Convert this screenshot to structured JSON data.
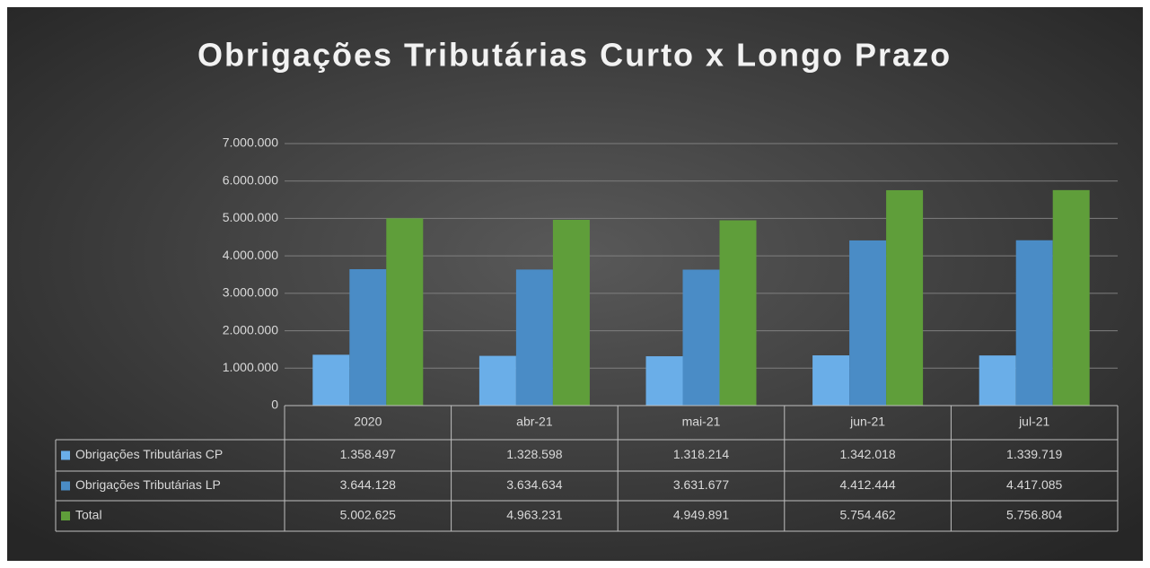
{
  "chart_data": {
    "type": "bar",
    "title": "Obrigações Tributárias Curto x Longo Prazo",
    "categories": [
      "2020",
      "abr-21",
      "mai-21",
      "jun-21",
      "jul-21"
    ],
    "series": [
      {
        "name": "Obrigações Tributárias CP",
        "color": "#6aaee8",
        "values": [
          1358497,
          1328598,
          1318214,
          1342018,
          1339719
        ],
        "value_labels": [
          "1.358.497",
          "1.328.598",
          "1.318.214",
          "1.342.018",
          "1.339.719"
        ]
      },
      {
        "name": "Obrigações Tributárias LP",
        "color": "#4a8cc6",
        "values": [
          3644128,
          3634634,
          3631677,
          4412444,
          4417085
        ],
        "value_labels": [
          "3.644.128",
          "3.634.634",
          "3.631.677",
          "4.412.444",
          "4.417.085"
        ]
      },
      {
        "name": "Total",
        "color": "#5f9e3a",
        "values": [
          5002625,
          4963231,
          4949891,
          5754462,
          5756804
        ],
        "value_labels": [
          "5.002.625",
          "4.963.231",
          "4.949.891",
          "5.754.462",
          "5.756.804"
        ]
      }
    ],
    "ylim": [
      0,
      7000000
    ],
    "yticks": [
      0,
      {
        "value": 1000000,
        "label": "1.000.000"
      },
      {
        "value": 2000000,
        "label": "2.000.000"
      },
      {
        "value": 3000000,
        "label": "3.000.000"
      },
      {
        "value": 4000000,
        "label": "4.000.000"
      },
      {
        "value": 5000000,
        "label": "5.000.000"
      },
      {
        "value": 6000000,
        "label": "6.000.000"
      },
      {
        "value": 7000000,
        "label": "7.000.000"
      }
    ],
    "grid": true
  }
}
